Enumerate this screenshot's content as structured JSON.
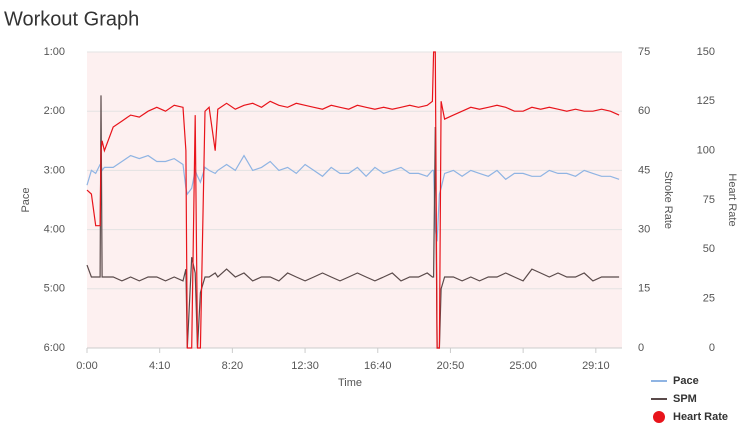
{
  "chart_data": {
    "type": "line",
    "title": "Workout Graph",
    "x_label": "Time",
    "y_label": "Pace",
    "y2_label": "Stroke Rate",
    "y3_label": "Heart Rate",
    "x": [
      0,
      15,
      30,
      45,
      48,
      52,
      60,
      90,
      120,
      150,
      180,
      210,
      240,
      270,
      300,
      330,
      340,
      345,
      360,
      372,
      380,
      390,
      406,
      420,
      441,
      450,
      480,
      510,
      540,
      570,
      600,
      630,
      660,
      690,
      720,
      750,
      780,
      810,
      840,
      870,
      900,
      930,
      960,
      990,
      1020,
      1050,
      1080,
      1110,
      1140,
      1170,
      1188,
      1192,
      1198,
      1204,
      1212,
      1218,
      1230,
      1260,
      1290,
      1320,
      1350,
      1380,
      1410,
      1440,
      1470,
      1500,
      1530,
      1560,
      1590,
      1620,
      1650,
      1680,
      1710,
      1740,
      1770,
      1800,
      1830
    ],
    "xlim": [
      0,
      1840
    ],
    "xticks": [
      {
        "value": 0,
        "label": "0:00"
      },
      {
        "value": 250,
        "label": "4:10"
      },
      {
        "value": 500,
        "label": "8:20"
      },
      {
        "value": 750,
        "label": "12:30"
      },
      {
        "value": 1000,
        "label": "16:40"
      },
      {
        "value": 1250,
        "label": "20:50"
      },
      {
        "value": 1500,
        "label": "25:00"
      },
      {
        "value": 1750,
        "label": "29:10"
      }
    ],
    "ylim": [
      6,
      1
    ],
    "yticks": [
      {
        "value": 1,
        "label": "1:00"
      },
      {
        "value": 2,
        "label": "2:00"
      },
      {
        "value": 3,
        "label": "3:00"
      },
      {
        "value": 4,
        "label": "4:00"
      },
      {
        "value": 5,
        "label": "5:00"
      },
      {
        "value": 6,
        "label": "6:00"
      }
    ],
    "y2lim": [
      0,
      75
    ],
    "y2ticks": [
      0,
      15,
      30,
      45,
      60,
      75
    ],
    "y3lim": [
      0,
      150
    ],
    "y3ticks": [
      0,
      25,
      50,
      75,
      100,
      125,
      150
    ],
    "grid": true,
    "series": [
      {
        "name": "Pace",
        "color": "#8fb4e3",
        "axis": "y",
        "legend_symbol": "line",
        "values": [
          3.25,
          3.0,
          3.05,
          2.9,
          2.9,
          3.0,
          2.95,
          2.95,
          2.85,
          2.75,
          2.8,
          2.75,
          2.85,
          2.85,
          2.8,
          2.9,
          3.3,
          3.4,
          3.3,
          3.0,
          3.1,
          3.2,
          2.95,
          3.0,
          3.05,
          3.0,
          2.9,
          3.0,
          2.75,
          3.0,
          2.95,
          2.85,
          3.0,
          2.95,
          3.05,
          2.9,
          3.0,
          3.1,
          2.95,
          3.05,
          3.05,
          2.95,
          3.1,
          2.95,
          3.05,
          3.0,
          2.95,
          3.05,
          3.05,
          3.1,
          3.0,
          3.0,
          4.0,
          4.2,
          3.4,
          3.3,
          3.05,
          3.0,
          3.1,
          3.0,
          3.05,
          3.1,
          3.0,
          3.15,
          3.05,
          3.05,
          3.1,
          3.1,
          3.0,
          3.05,
          3.05,
          3.1,
          3.0,
          3.05,
          3.1,
          3.1,
          3.15
        ]
      },
      {
        "name": "SPM",
        "color": "#5a4a4a",
        "axis": "y2",
        "legend_symbol": "line",
        "values": [
          21,
          18,
          18,
          18,
          64,
          18,
          18,
          18,
          17,
          18,
          17,
          18,
          18,
          17,
          18,
          17,
          20,
          0,
          23,
          19,
          0,
          14,
          18,
          18,
          19,
          18,
          20,
          18,
          19,
          17,
          18,
          18,
          17,
          19,
          18,
          17,
          18,
          19,
          18,
          17,
          18,
          19,
          18,
          17,
          18,
          19,
          17,
          18,
          18,
          19,
          18,
          18,
          56,
          0,
          0,
          15,
          18,
          18,
          17,
          18,
          17,
          18,
          18,
          19,
          18,
          17,
          20,
          19,
          18,
          19,
          18,
          18,
          19,
          17,
          18,
          18,
          18
        ]
      },
      {
        "name": "Heart Rate",
        "color": "#e8141b",
        "axis": "y3",
        "legend_symbol": "circle",
        "values": [
          80,
          78,
          62,
          62,
          100,
          105,
          100,
          112,
          115,
          118,
          117,
          120,
          122,
          120,
          123,
          122,
          100,
          0,
          0,
          118,
          0,
          0,
          120,
          122,
          100,
          121,
          124,
          121,
          123,
          124,
          122,
          125,
          123,
          122,
          124,
          123,
          122,
          121,
          123,
          122,
          121,
          123,
          122,
          121,
          122,
          121,
          122,
          123,
          122,
          123,
          125,
          150,
          150,
          0,
          0,
          125,
          116,
          118,
          120,
          122,
          121,
          122,
          123,
          122,
          120,
          120,
          122,
          121,
          122,
          121,
          120,
          121,
          120,
          120,
          121,
          120,
          118
        ]
      }
    ]
  }
}
